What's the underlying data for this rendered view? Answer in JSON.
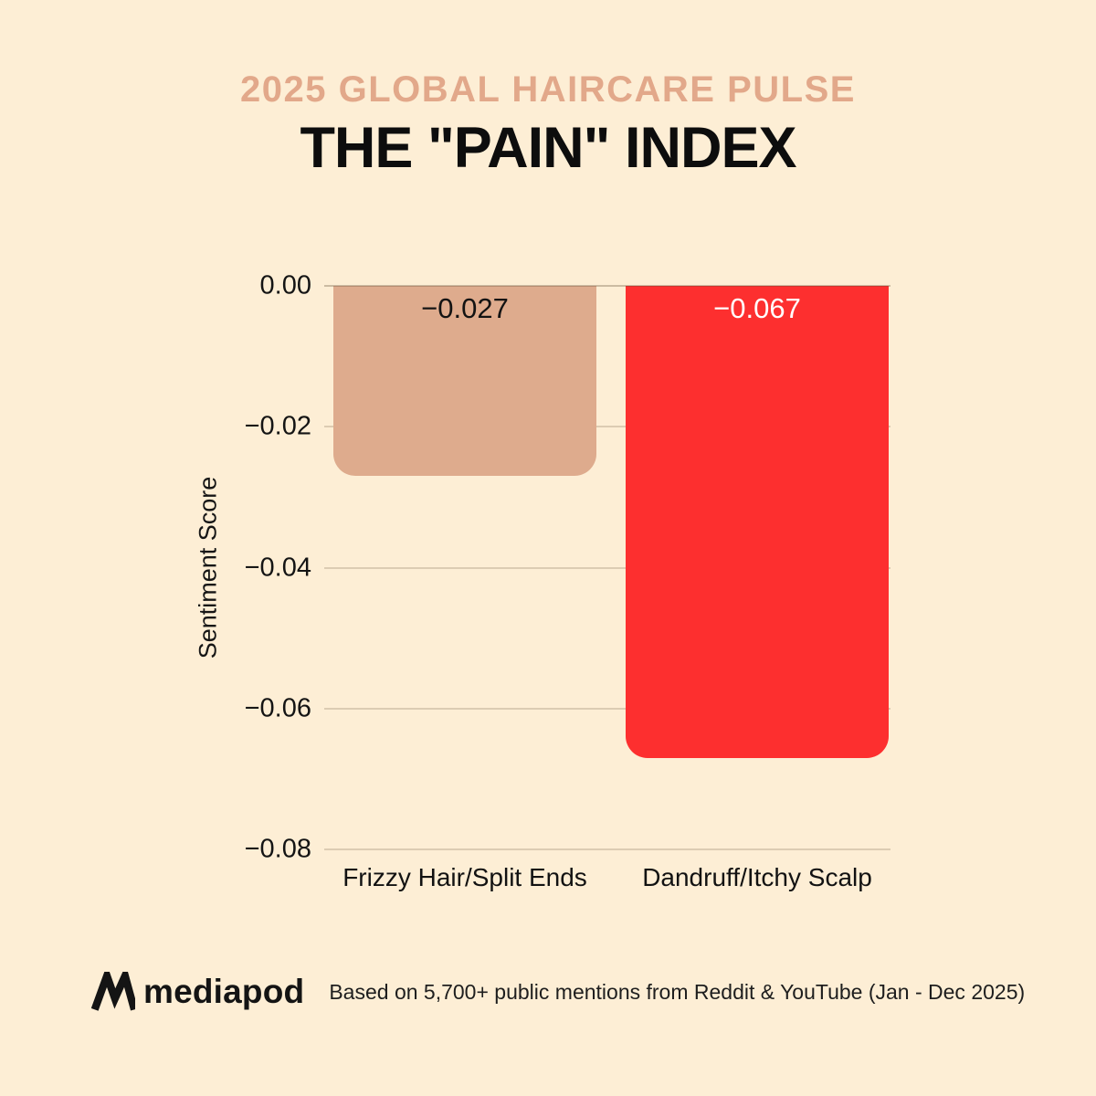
{
  "header": {
    "eyebrow": "2025 GLOBAL HAIRCARE PULSE",
    "title": "THE \"PAIN\" INDEX"
  },
  "chart_data": {
    "type": "bar",
    "title": "THE \"PAIN\" INDEX",
    "categories": [
      "Frizzy Hair/Split Ends",
      "Dandruff/Itchy Scalp"
    ],
    "values": [
      -0.027,
      -0.067
    ],
    "value_labels": [
      "−0.027",
      "−0.067"
    ],
    "value_label_colors": [
      "#131313",
      "#ffffff"
    ],
    "bar_colors": [
      "#deab8d",
      "#fd2f2f"
    ],
    "xlabel": "",
    "ylabel": "Sentiment Score",
    "ylim": [
      -0.08,
      0
    ],
    "yticks": [
      "0.00",
      "−0.02",
      "−0.04",
      "−0.06",
      "−0.08"
    ],
    "grid": true,
    "legend": false
  },
  "footer": {
    "brand": "mediapod",
    "note": "Based on 5,700+ public mentions from Reddit & YouTube (Jan - Dec 2025)"
  },
  "colors": {
    "background": "#fdeed5",
    "accent_eyebrow": "#e2a88a",
    "title_text": "#0d0d0d",
    "bar_tan": "#deab8d",
    "bar_red": "#fd2f2f",
    "gridline": "#d9ccb7",
    "logo_text": "#141414"
  }
}
